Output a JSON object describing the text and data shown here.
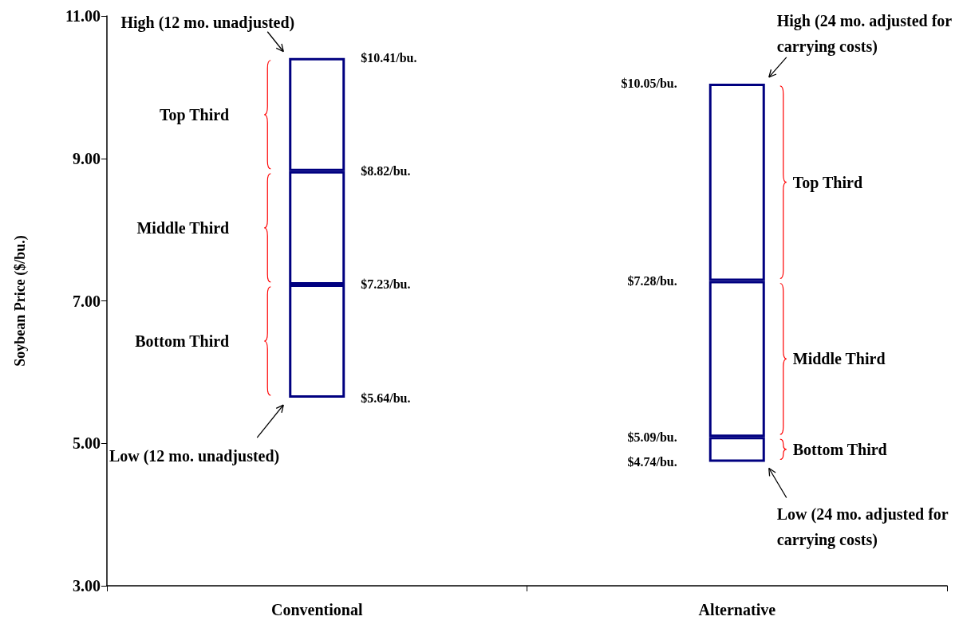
{
  "chart_data": {
    "type": "bar",
    "categories": [
      "Conventional",
      "Alternative"
    ],
    "grid": false,
    "series": [
      {
        "color": "#000080",
        "base": [
          5.64,
          4.74
        ],
        "values": [
          1.59,
          0.35
        ]
      },
      {
        "color": "#000080",
        "base": [
          7.23,
          5.09
        ],
        "values": [
          1.59,
          2.19
        ]
      },
      {
        "color": "#000080",
        "base": [
          8.82,
          7.28
        ],
        "values": [
          1.59,
          2.77
        ]
      }
    ],
    "ylabel": "Soybean Price ($/bu.)",
    "ylim": [
      3,
      11
    ],
    "yticks": [
      {
        "value": 3,
        "label": "3.00"
      },
      {
        "value": 5,
        "label": "5.00"
      },
      {
        "value": 7,
        "label": "7.00"
      },
      {
        "value": 9,
        "label": "9.00"
      },
      {
        "value": 11,
        "label": "11.00"
      }
    ],
    "annotations": [
      "High (12 mo. unadjusted)",
      "Low (12 mo. unadjusted)",
      "High (24 mo. adjusted for carrying costs)",
      "Low (24 mo. adjusted for carrying costs)",
      "$10.41/bu.",
      "$8.82/bu.",
      "$7.23/bu.",
      "$5.64/bu.",
      "$10.05/bu.",
      "$7.28/bu.",
      "$5.09/bu.",
      "$4.74/bu.",
      "Top Third",
      "Middle Third",
      "Bottom Third",
      "Top Third",
      "Middle Third",
      "Bottom Third"
    ]
  }
}
